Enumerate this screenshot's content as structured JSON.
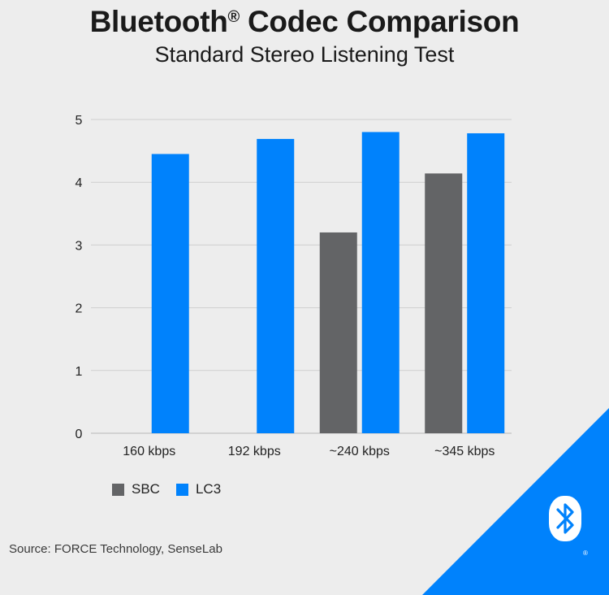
{
  "header": {
    "title": "Bluetooth",
    "title_mark": "®",
    "title_rest": " Codec Comparison",
    "subtitle": "Standard Stereo Listening Test"
  },
  "chart_data": {
    "type": "bar",
    "title": "Bluetooth® Codec Comparison",
    "subtitle": "Standard Stereo Listening Test",
    "xlabel": "",
    "ylabel": "",
    "categories": [
      "160 kbps",
      "192 kbps",
      "~240 kbps",
      "~345 kbps"
    ],
    "series": [
      {
        "name": "SBC",
        "color": "#636466",
        "values": [
          null,
          null,
          3.2,
          4.14
        ]
      },
      {
        "name": "LC3",
        "color": "#0082fc",
        "values": [
          4.45,
          4.69,
          4.8,
          4.78
        ]
      }
    ],
    "ylim": [
      0,
      5
    ],
    "yticks": [
      0,
      1,
      2,
      3,
      4,
      5
    ],
    "grid": true,
    "legend": "bottom-left"
  },
  "legend": {
    "items": [
      {
        "label": "SBC",
        "color": "#636466"
      },
      {
        "label": "LC3",
        "color": "#0082fc"
      }
    ]
  },
  "footer": {
    "source": "Source: FORCE Technology, SenseLab"
  },
  "logo": {
    "icon": "bluetooth-icon",
    "mark": "®"
  },
  "colors": {
    "background": "#ededed",
    "accent": "#0082fc",
    "gray": "#636466"
  }
}
